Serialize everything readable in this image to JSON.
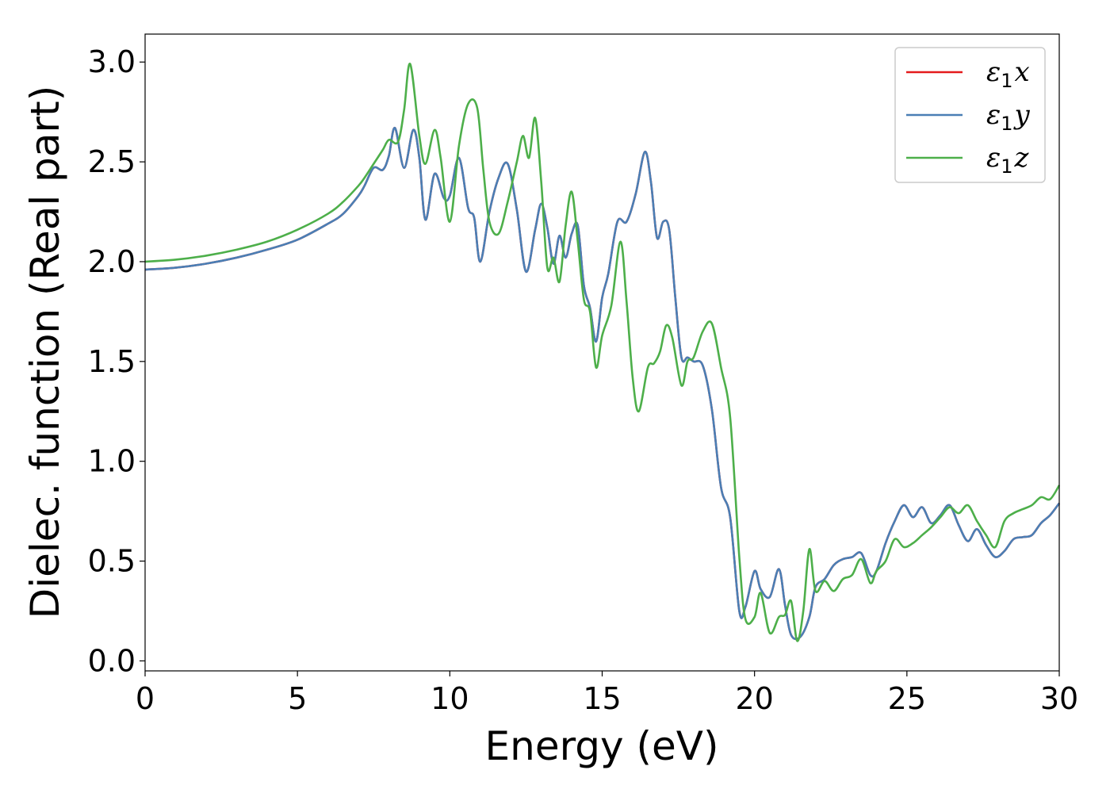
{
  "chart_data": {
    "type": "line",
    "xlabel": "Energy (eV)",
    "ylabel": "Dielec. function (Real part)",
    "xlim": [
      0,
      30
    ],
    "ylim": [
      -0.05,
      3.14
    ],
    "xticks": [
      0,
      5,
      10,
      15,
      20,
      25,
      30
    ],
    "xtick_labels": [
      "0",
      "5",
      "10",
      "15",
      "20",
      "25",
      "30"
    ],
    "yticks": [
      0.0,
      0.5,
      1.0,
      1.5,
      2.0,
      2.5,
      3.0
    ],
    "ytick_labels": [
      "0.0",
      "0.5",
      "1.0",
      "1.5",
      "2.0",
      "2.5",
      "3.0"
    ],
    "grid": false,
    "legend_position": "top-right",
    "series": [
      {
        "name": "ε1x",
        "label_main": "ε",
        "label_sub": "1",
        "label_var": "x",
        "color": "#e41a1c",
        "x": [
          0,
          1,
          2,
          3,
          4,
          5,
          6,
          6.5,
          7,
          7.2,
          7.5,
          7.8,
          8.0,
          8.2,
          8.5,
          8.8,
          9.0,
          9.2,
          9.5,
          9.8,
          10.0,
          10.3,
          10.6,
          10.8,
          11.0,
          11.3,
          11.6,
          11.9,
          12.2,
          12.5,
          12.8,
          13.0,
          13.2,
          13.4,
          13.6,
          13.8,
          14.0,
          14.2,
          14.4,
          14.6,
          14.8,
          15.0,
          15.2,
          15.5,
          15.8,
          16.1,
          16.4,
          16.6,
          16.8,
          17.0,
          17.2,
          17.4,
          17.6,
          17.8,
          18.0,
          18.3,
          18.6,
          18.9,
          19.2,
          19.5,
          19.7,
          20.0,
          20.2,
          20.5,
          20.8,
          21.0,
          21.2,
          21.5,
          21.8,
          22.0,
          22.3,
          22.6,
          22.9,
          23.2,
          23.5,
          23.8,
          24.0,
          24.3,
          24.6,
          24.9,
          25.2,
          25.5,
          25.8,
          26.1,
          26.4,
          26.7,
          27.0,
          27.3,
          27.6,
          27.9,
          28.2,
          28.5,
          28.8,
          29.1,
          29.4,
          29.7,
          30.0
        ],
        "y": [
          1.96,
          1.97,
          1.99,
          2.02,
          2.06,
          2.11,
          2.19,
          2.24,
          2.33,
          2.38,
          2.47,
          2.46,
          2.53,
          2.67,
          2.47,
          2.66,
          2.52,
          2.21,
          2.44,
          2.32,
          2.33,
          2.52,
          2.27,
          2.22,
          2.0,
          2.25,
          2.42,
          2.49,
          2.26,
          1.95,
          2.16,
          2.29,
          2.17,
          1.99,
          2.13,
          2.02,
          2.14,
          2.18,
          1.88,
          1.77,
          1.6,
          1.82,
          1.94,
          2.2,
          2.2,
          2.34,
          2.55,
          2.4,
          2.12,
          2.2,
          2.16,
          1.82,
          1.52,
          1.52,
          1.5,
          1.48,
          1.26,
          0.87,
          0.72,
          0.25,
          0.27,
          0.45,
          0.36,
          0.32,
          0.46,
          0.28,
          0.13,
          0.12,
          0.22,
          0.37,
          0.41,
          0.48,
          0.51,
          0.52,
          0.54,
          0.43,
          0.45,
          0.59,
          0.7,
          0.78,
          0.72,
          0.77,
          0.69,
          0.73,
          0.78,
          0.68,
          0.6,
          0.66,
          0.58,
          0.52,
          0.55,
          0.61,
          0.62,
          0.63,
          0.69,
          0.73,
          0.79
        ]
      },
      {
        "name": "ε1y",
        "label_main": "ε",
        "label_sub": "1",
        "label_var": "y",
        "color": "#4a7fb5",
        "x": [
          0,
          1,
          2,
          3,
          4,
          5,
          6,
          6.5,
          7,
          7.2,
          7.5,
          7.8,
          8.0,
          8.2,
          8.5,
          8.8,
          9.0,
          9.2,
          9.5,
          9.8,
          10.0,
          10.3,
          10.6,
          10.8,
          11.0,
          11.3,
          11.6,
          11.9,
          12.2,
          12.5,
          12.8,
          13.0,
          13.2,
          13.4,
          13.6,
          13.8,
          14.0,
          14.2,
          14.4,
          14.6,
          14.8,
          15.0,
          15.2,
          15.5,
          15.8,
          16.1,
          16.4,
          16.6,
          16.8,
          17.0,
          17.2,
          17.4,
          17.6,
          17.8,
          18.0,
          18.3,
          18.6,
          18.9,
          19.2,
          19.5,
          19.7,
          20.0,
          20.2,
          20.5,
          20.8,
          21.0,
          21.2,
          21.5,
          21.8,
          22.0,
          22.3,
          22.6,
          22.9,
          23.2,
          23.5,
          23.8,
          24.0,
          24.3,
          24.6,
          24.9,
          25.2,
          25.5,
          25.8,
          26.1,
          26.4,
          26.7,
          27.0,
          27.3,
          27.6,
          27.9,
          28.2,
          28.5,
          28.8,
          29.1,
          29.4,
          29.7,
          30.0
        ],
        "y": [
          1.96,
          1.97,
          1.99,
          2.02,
          2.06,
          2.11,
          2.19,
          2.24,
          2.33,
          2.38,
          2.47,
          2.46,
          2.53,
          2.67,
          2.47,
          2.66,
          2.52,
          2.21,
          2.44,
          2.32,
          2.33,
          2.52,
          2.27,
          2.22,
          2.0,
          2.25,
          2.42,
          2.49,
          2.26,
          1.95,
          2.16,
          2.29,
          2.17,
          1.99,
          2.13,
          2.02,
          2.14,
          2.18,
          1.88,
          1.77,
          1.6,
          1.82,
          1.94,
          2.2,
          2.2,
          2.34,
          2.55,
          2.4,
          2.12,
          2.2,
          2.16,
          1.82,
          1.52,
          1.52,
          1.5,
          1.48,
          1.26,
          0.87,
          0.72,
          0.25,
          0.27,
          0.45,
          0.36,
          0.32,
          0.46,
          0.28,
          0.13,
          0.12,
          0.22,
          0.37,
          0.41,
          0.48,
          0.51,
          0.52,
          0.54,
          0.43,
          0.45,
          0.59,
          0.7,
          0.78,
          0.72,
          0.77,
          0.69,
          0.73,
          0.78,
          0.68,
          0.6,
          0.66,
          0.58,
          0.52,
          0.55,
          0.61,
          0.62,
          0.63,
          0.69,
          0.73,
          0.79
        ]
      },
      {
        "name": "ε1z",
        "label_main": "ε",
        "label_sub": "1",
        "label_var": "z",
        "color": "#4daf4a",
        "x": [
          0,
          1,
          2,
          3,
          4,
          5,
          6,
          6.5,
          7,
          7.2,
          7.5,
          7.8,
          8.0,
          8.3,
          8.5,
          8.7,
          9.0,
          9.2,
          9.5,
          9.7,
          10.0,
          10.3,
          10.6,
          10.9,
          11.1,
          11.3,
          11.6,
          11.9,
          12.2,
          12.4,
          12.6,
          12.8,
          13.0,
          13.2,
          13.4,
          13.6,
          13.8,
          14.0,
          14.2,
          14.4,
          14.6,
          14.8,
          15.0,
          15.3,
          15.6,
          15.8,
          16.0,
          16.2,
          16.5,
          16.7,
          16.9,
          17.1,
          17.3,
          17.6,
          17.8,
          18.0,
          18.3,
          18.6,
          18.9,
          19.2,
          19.5,
          19.7,
          20.0,
          20.2,
          20.5,
          20.8,
          21.0,
          21.2,
          21.4,
          21.6,
          21.8,
          22.0,
          22.3,
          22.6,
          22.9,
          23.2,
          23.5,
          23.8,
          24.0,
          24.3,
          24.6,
          24.9,
          25.2,
          25.5,
          25.8,
          26.1,
          26.4,
          26.7,
          27.0,
          27.3,
          27.6,
          27.9,
          28.2,
          28.5,
          28.8,
          29.1,
          29.4,
          29.7,
          30.0
        ],
        "y": [
          2.0,
          2.01,
          2.03,
          2.06,
          2.1,
          2.16,
          2.24,
          2.3,
          2.38,
          2.42,
          2.49,
          2.56,
          2.61,
          2.6,
          2.76,
          2.99,
          2.63,
          2.49,
          2.66,
          2.52,
          2.2,
          2.58,
          2.79,
          2.77,
          2.46,
          2.2,
          2.14,
          2.3,
          2.5,
          2.63,
          2.52,
          2.72,
          2.4,
          1.97,
          2.02,
          1.9,
          2.18,
          2.35,
          2.1,
          1.81,
          1.75,
          1.47,
          1.63,
          1.78,
          2.1,
          1.8,
          1.42,
          1.25,
          1.47,
          1.49,
          1.55,
          1.68,
          1.62,
          1.38,
          1.5,
          1.52,
          1.65,
          1.69,
          1.47,
          1.22,
          0.52,
          0.21,
          0.22,
          0.34,
          0.14,
          0.22,
          0.23,
          0.3,
          0.1,
          0.25,
          0.56,
          0.35,
          0.4,
          0.35,
          0.41,
          0.43,
          0.51,
          0.39,
          0.45,
          0.5,
          0.61,
          0.57,
          0.59,
          0.63,
          0.67,
          0.72,
          0.77,
          0.74,
          0.78,
          0.7,
          0.63,
          0.57,
          0.7,
          0.74,
          0.76,
          0.78,
          0.82,
          0.81,
          0.88
        ]
      }
    ]
  }
}
